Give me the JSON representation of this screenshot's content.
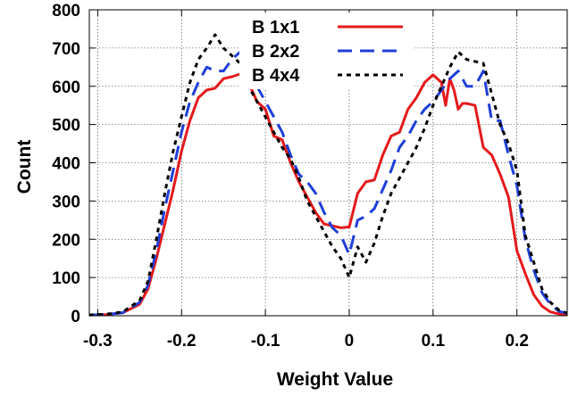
{
  "chart_data": {
    "type": "line",
    "xlabel": "Weight Value",
    "ylabel": "Count",
    "xlim": [
      -0.31,
      0.26
    ],
    "ylim": [
      0,
      800
    ],
    "x_ticks": [
      -0.3,
      -0.2,
      -0.1,
      0,
      0.1,
      0.2
    ],
    "x_tick_labels": [
      "-0.3",
      "-0.2",
      "-0.1",
      "0",
      "0.1",
      "0.2"
    ],
    "y_ticks": [
      0,
      100,
      200,
      300,
      400,
      500,
      600,
      700,
      800
    ],
    "y_tick_labels": [
      "0",
      "100",
      "200",
      "300",
      "400",
      "500",
      "600",
      "700",
      "800"
    ],
    "grid": true,
    "legend_position": "top-center",
    "series": [
      {
        "name": "B 1x1",
        "color": "#e41a1c",
        "dash": "solid",
        "x": [
          -0.31,
          -0.29,
          -0.27,
          -0.25,
          -0.24,
          -0.23,
          -0.22,
          -0.21,
          -0.2,
          -0.19,
          -0.18,
          -0.17,
          -0.16,
          -0.15,
          -0.14,
          -0.13,
          -0.12,
          -0.11,
          -0.1,
          -0.09,
          -0.08,
          -0.07,
          -0.06,
          -0.05,
          -0.04,
          -0.03,
          -0.02,
          -0.01,
          0.0,
          0.01,
          0.02,
          0.03,
          0.04,
          0.05,
          0.06,
          0.07,
          0.08,
          0.09,
          0.1,
          0.11,
          0.115,
          0.12,
          0.125,
          0.13,
          0.135,
          0.14,
          0.15,
          0.16,
          0.17,
          0.18,
          0.19,
          0.2,
          0.21,
          0.22,
          0.23,
          0.24,
          0.25,
          0.26
        ],
        "y": [
          2,
          3,
          8,
          30,
          70,
          150,
          240,
          330,
          430,
          510,
          570,
          590,
          595,
          620,
          625,
          632,
          610,
          560,
          540,
          470,
          460,
          400,
          350,
          310,
          270,
          240,
          235,
          230,
          232,
          320,
          350,
          355,
          420,
          470,
          480,
          540,
          570,
          610,
          630,
          610,
          550,
          620,
          590,
          540,
          555,
          555,
          550,
          440,
          420,
          370,
          310,
          170,
          110,
          55,
          25,
          10,
          5,
          3
        ]
      },
      {
        "name": "B 2x2",
        "color": "#1f3fd8",
        "dash": "dashed",
        "x": [
          -0.31,
          -0.29,
          -0.27,
          -0.25,
          -0.24,
          -0.23,
          -0.22,
          -0.21,
          -0.2,
          -0.19,
          -0.18,
          -0.17,
          -0.16,
          -0.15,
          -0.14,
          -0.13,
          -0.12,
          -0.11,
          -0.1,
          -0.09,
          -0.08,
          -0.07,
          -0.06,
          -0.05,
          -0.04,
          -0.03,
          -0.02,
          -0.01,
          0.0,
          0.01,
          0.02,
          0.03,
          0.04,
          0.05,
          0.06,
          0.07,
          0.08,
          0.09,
          0.1,
          0.11,
          0.12,
          0.13,
          0.14,
          0.15,
          0.16,
          0.17,
          0.18,
          0.19,
          0.2,
          0.21,
          0.22,
          0.23,
          0.24,
          0.25,
          0.26
        ],
        "y": [
          2,
          3,
          8,
          35,
          80,
          170,
          280,
          380,
          480,
          560,
          610,
          650,
          640,
          640,
          670,
          690,
          650,
          600,
          560,
          520,
          480,
          420,
          370,
          350,
          320,
          270,
          230,
          210,
          160,
          250,
          260,
          280,
          330,
          380,
          440,
          470,
          510,
          540,
          560,
          590,
          620,
          640,
          600,
          600,
          640,
          510,
          510,
          420,
          340,
          200,
          120,
          60,
          30,
          12,
          6
        ]
      },
      {
        "name": "B 4x4",
        "color": "#000000",
        "dash": "dotted",
        "x": [
          -0.31,
          -0.29,
          -0.27,
          -0.25,
          -0.24,
          -0.23,
          -0.22,
          -0.21,
          -0.2,
          -0.19,
          -0.18,
          -0.17,
          -0.16,
          -0.15,
          -0.14,
          -0.13,
          -0.12,
          -0.11,
          -0.1,
          -0.09,
          -0.08,
          -0.07,
          -0.06,
          -0.05,
          -0.04,
          -0.03,
          -0.02,
          -0.01,
          0.0,
          0.01,
          0.02,
          0.03,
          0.04,
          0.05,
          0.06,
          0.07,
          0.08,
          0.09,
          0.1,
          0.11,
          0.12,
          0.13,
          0.14,
          0.15,
          0.16,
          0.17,
          0.18,
          0.19,
          0.2,
          0.21,
          0.22,
          0.23,
          0.24,
          0.25,
          0.26
        ],
        "y": [
          2,
          4,
          10,
          40,
          90,
          200,
          320,
          430,
          520,
          610,
          670,
          700,
          735,
          700,
          680,
          660,
          600,
          560,
          520,
          480,
          440,
          410,
          360,
          300,
          260,
          220,
          180,
          150,
          100,
          180,
          140,
          190,
          260,
          320,
          360,
          400,
          440,
          490,
          550,
          600,
          650,
          690,
          670,
          665,
          660,
          580,
          500,
          450,
          380,
          210,
          140,
          70,
          35,
          15,
          7
        ]
      }
    ]
  }
}
